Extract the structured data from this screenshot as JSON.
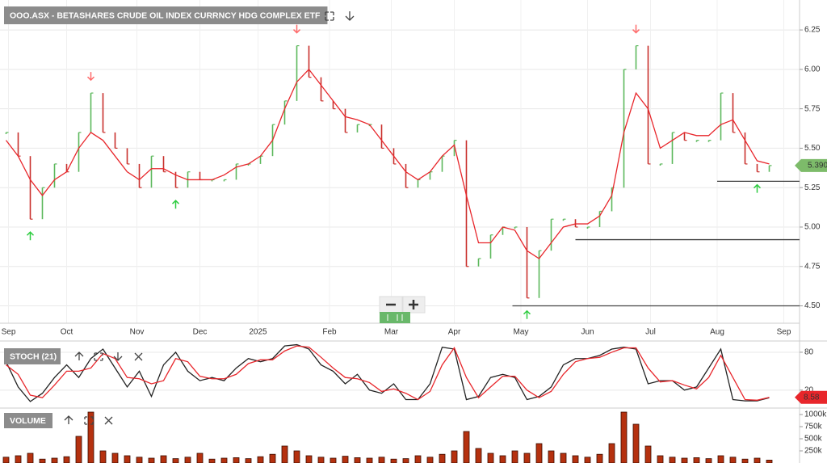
{
  "chart_data": [
    {
      "type": "ohlc",
      "title": "OOO.ASX - BETASHARES CRUDE OIL INDEX CURRNCY HDG COMPLEX ETF",
      "values": [
        5.6,
        5.45,
        5.05,
        5.25,
        5.4,
        5.35,
        5.6,
        5.85,
        5.6,
        5.5,
        5.4,
        5.25,
        5.45,
        5.35,
        5.25,
        5.35,
        5.3,
        5.3,
        5.3,
        5.4,
        5.4,
        5.45,
        5.65,
        5.8,
        6.15,
        5.95,
        5.8,
        5.75,
        5.6,
        5.65,
        5.65,
        5.5,
        5.4,
        5.25,
        5.3,
        5.35,
        5.45,
        5.55,
        4.75,
        4.8,
        4.95,
        5.0,
        5.0,
        4.55,
        4.85,
        5.05,
        5.05,
        5.0,
        5.0,
        5.1,
        5.25,
        6.0,
        6.15,
        5.4,
        5.4,
        5.6,
        5.55,
        5.55,
        5.55,
        5.85,
        5.6,
        5.4,
        5.35,
        5.39
      ],
      "up_color": "#5cb85c",
      "down_color": "#c9302c",
      "moving_average": {
        "color": "#e8262b",
        "values": [
          5.55,
          5.45,
          5.3,
          5.2,
          5.3,
          5.35,
          5.5,
          5.6,
          5.55,
          5.45,
          5.35,
          5.3,
          5.37,
          5.37,
          5.33,
          5.3,
          5.3,
          5.3,
          5.33,
          5.38,
          5.4,
          5.45,
          5.55,
          5.75,
          5.92,
          6.0,
          5.9,
          5.8,
          5.7,
          5.68,
          5.65,
          5.55,
          5.45,
          5.35,
          5.3,
          5.35,
          5.45,
          5.52,
          5.2,
          4.9,
          4.9,
          5.0,
          4.98,
          4.85,
          4.8,
          4.9,
          5.0,
          5.02,
          5.02,
          5.07,
          5.2,
          5.6,
          5.85,
          5.75,
          5.5,
          5.55,
          5.6,
          5.58,
          5.58,
          5.65,
          5.68,
          5.55,
          5.42,
          5.4
        ]
      },
      "support_lines": [
        {
          "value": 5.29,
          "start": 58.7
        },
        {
          "value": 4.92,
          "start": 47
        },
        {
          "value": 4.5,
          "start": 41.8
        }
      ],
      "buy_signals": [
        2,
        14,
        43,
        62
      ],
      "sell_signals": [
        7,
        24,
        52
      ],
      "last_label": "5.390",
      "last_color": "#7dbb6a",
      "xlim": [
        -0.5,
        65.5
      ],
      "xticks": [
        {
          "value": 0.2,
          "label": "Sep"
        },
        {
          "value": 5,
          "label": "Oct"
        },
        {
          "value": 10.8,
          "label": "Nov"
        },
        {
          "value": 16,
          "label": "Dec"
        },
        {
          "value": 20.8,
          "label": "2025"
        },
        {
          "value": 26.7,
          "label": "Feb"
        },
        {
          "value": 31.8,
          "label": "Mar"
        },
        {
          "value": 37,
          "label": "Apr"
        },
        {
          "value": 42.5,
          "label": "May"
        },
        {
          "value": 48,
          "label": "Jun"
        },
        {
          "value": 53.2,
          "label": "Jul"
        },
        {
          "value": 58.7,
          "label": "Aug"
        },
        {
          "value": 64.2,
          "label": "Sep"
        }
      ],
      "ylim": [
        4.39,
        6.44
      ],
      "yticks": [
        {
          "value": 4.5,
          "label": "4.50"
        },
        {
          "value": 4.75,
          "label": "4.75"
        },
        {
          "value": 5,
          "label": "5.00"
        },
        {
          "value": 5.25,
          "label": "5.25"
        },
        {
          "value": 5.5,
          "label": "5.50"
        },
        {
          "value": 5.75,
          "label": "5.75"
        },
        {
          "value": 6,
          "label": "6.00"
        },
        {
          "value": 6.25,
          "label": "6.25"
        }
      ],
      "grid": true
    },
    {
      "type": "line",
      "title": "STOCH (21)",
      "series": [
        {
          "color": "#222222",
          "values": [
            65,
            25,
            2,
            15,
            40,
            60,
            40,
            70,
            85,
            55,
            25,
            50,
            10,
            60,
            80,
            50,
            35,
            40,
            35,
            55,
            70,
            65,
            70,
            90,
            92,
            85,
            60,
            50,
            30,
            45,
            20,
            15,
            30,
            5,
            5,
            30,
            88,
            85,
            5,
            10,
            40,
            45,
            40,
            5,
            10,
            25,
            60,
            70,
            70,
            75,
            85,
            88,
            85,
            30,
            35,
            35,
            20,
            25,
            55,
            85,
            5,
            3,
            3,
            8
          ]
        },
        {
          "color": "#e8262b",
          "values": [
            60,
            45,
            12,
            8,
            28,
            50,
            50,
            55,
            78,
            70,
            40,
            38,
            30,
            35,
            70,
            65,
            42,
            38,
            38,
            45,
            62,
            68,
            68,
            82,
            90,
            88,
            72,
            55,
            40,
            38,
            32,
            18,
            22,
            15,
            5,
            18,
            60,
            87,
            40,
            8,
            25,
            42,
            42,
            20,
            8,
            18,
            45,
            65,
            70,
            72,
            80,
            87,
            87,
            55,
            33,
            35,
            28,
            22,
            40,
            75,
            40,
            5,
            4,
            8.58
          ]
        }
      ],
      "last_label": "8.58",
      "ylim": [
        -2,
        94
      ],
      "yticks": [
        20,
        80
      ]
    },
    {
      "type": "bar",
      "title": "VOLUME",
      "color": "#b5310f",
      "values": [
        120000,
        150000,
        200000,
        80000,
        100000,
        130000,
        550000,
        1050000,
        250000,
        200000,
        150000,
        120000,
        100000,
        150000,
        90000,
        120000,
        200000,
        80000,
        100000,
        110000,
        90000,
        130000,
        180000,
        350000,
        250000,
        150000,
        120000,
        100000,
        140000,
        110000,
        100000,
        120000,
        80000,
        90000,
        150000,
        120000,
        180000,
        250000,
        650000,
        300000,
        200000,
        150000,
        250000,
        200000,
        400000,
        250000,
        200000,
        150000,
        120000,
        180000,
        400000,
        1050000,
        800000,
        350000,
        150000,
        120000,
        100000,
        110000,
        90000,
        150000,
        120000,
        80000,
        100000,
        60000
      ],
      "ylim": [
        0,
        1050000
      ],
      "yticks": [
        {
          "value": 250000,
          "label": "250k"
        },
        {
          "value": 500000,
          "label": "500k"
        },
        {
          "value": 750000,
          "label": "750k"
        },
        {
          "value": 1000000,
          "label": "1000k"
        }
      ]
    }
  ]
}
